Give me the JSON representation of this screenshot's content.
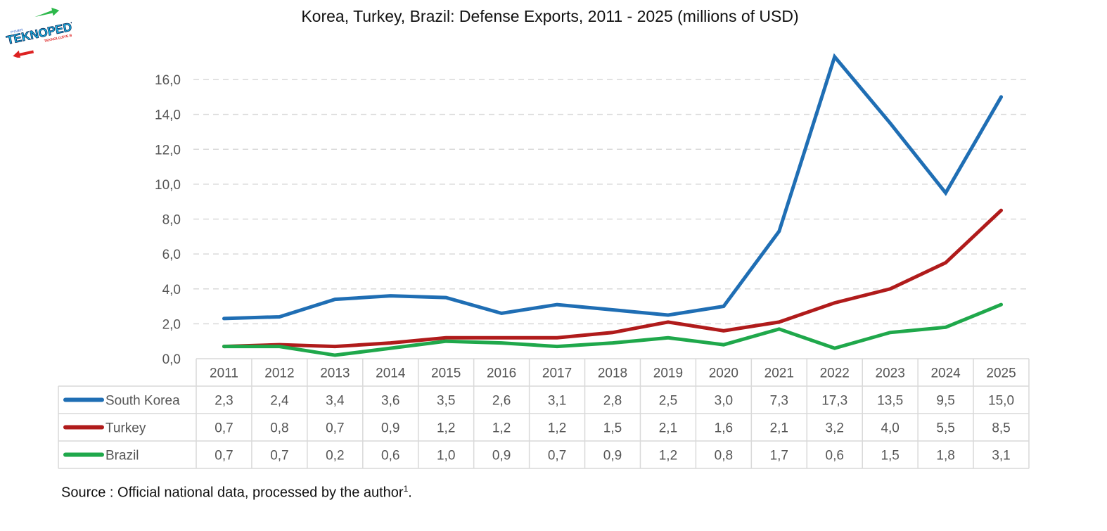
{
  "logo": {
    "text": "TEKNOPEDYA",
    "tagline": "TEKNOLOJİYE BİR BAKIŞ",
    "small": "PYMER"
  },
  "chart_data": {
    "type": "line",
    "title": "Korea, Turkey, Brazil: Defense Exports, 2011 - 2025 (millions of USD)",
    "xlabel": "",
    "ylabel": "",
    "ylim": [
      0,
      16
    ],
    "yticks": [
      0,
      2,
      4,
      6,
      8,
      10,
      12,
      14,
      16
    ],
    "ytick_labels": [
      "0,0",
      "2,0",
      "4,0",
      "6,0",
      "8,0",
      "10,0",
      "12,0",
      "14,0",
      "16,0"
    ],
    "grid": "horizontal-dashed",
    "categories": [
      "2011",
      "2012",
      "2013",
      "2014",
      "2015",
      "2016",
      "2017",
      "2018",
      "2019",
      "2020",
      "2021",
      "2022",
      "2023",
      "2024",
      "2025"
    ],
    "series": [
      {
        "name": "South Korea",
        "color": "#1F6EB4",
        "values": [
          2.3,
          2.4,
          3.4,
          3.6,
          3.5,
          2.6,
          3.1,
          2.8,
          2.5,
          3.0,
          7.3,
          17.3,
          13.5,
          9.5,
          15.0
        ],
        "labels": [
          "2,3",
          "2,4",
          "3,4",
          "3,6",
          "3,5",
          "2,6",
          "3,1",
          "2,8",
          "2,5",
          "3,0",
          "7,3",
          "17,3",
          "13,5",
          "9,5",
          "15,0"
        ]
      },
      {
        "name": "Turkey",
        "color": "#B01B1B",
        "values": [
          0.7,
          0.8,
          0.7,
          0.9,
          1.2,
          1.2,
          1.2,
          1.5,
          2.1,
          1.6,
          2.1,
          3.2,
          4.0,
          5.5,
          8.5
        ],
        "labels": [
          "0,7",
          "0,8",
          "0,7",
          "0,9",
          "1,2",
          "1,2",
          "1,2",
          "1,5",
          "2,1",
          "1,6",
          "2,1",
          "3,2",
          "4,0",
          "5,5",
          "8,5"
        ]
      },
      {
        "name": "Brazil",
        "color": "#1FA84B",
        "values": [
          0.7,
          0.7,
          0.2,
          0.6,
          1.0,
          0.9,
          0.7,
          0.9,
          1.2,
          0.8,
          1.7,
          0.6,
          1.5,
          1.8,
          3.1
        ],
        "labels": [
          "0,7",
          "0,7",
          "0,2",
          "0,6",
          "1,0",
          "0,9",
          "0,7",
          "0,9",
          "1,2",
          "0,8",
          "1,7",
          "0,6",
          "1,5",
          "1,8",
          "3,1"
        ]
      }
    ],
    "legend": "data-table-below",
    "source": "Source : Official national data, processed by the author",
    "source_footnote": "1"
  }
}
